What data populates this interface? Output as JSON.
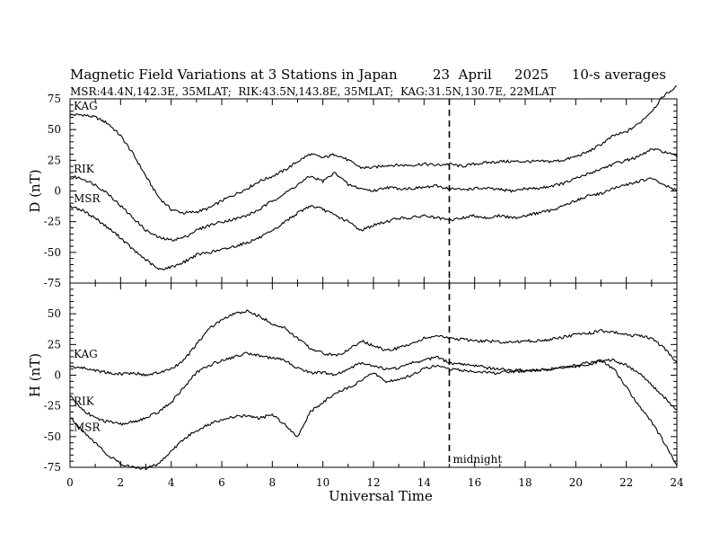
{
  "chart_data": {
    "type": "line",
    "title": "Magnetic Field Variations at 3 Stations in Japan",
    "date": "23  April",
    "year": "2025",
    "averaging": "10-s averages",
    "stations_info": "MSR:44.4N,142.3E, 35MLAT;  RIK:43.5N,143.8E, 35MLAT;  KAG:31.5N,130.7E, 22MLAT",
    "xlabel": "Universal Time",
    "xlim": [
      0,
      24
    ],
    "xticks": [
      0,
      2,
      4,
      6,
      8,
      10,
      12,
      14,
      16,
      18,
      20,
      22,
      24
    ],
    "midnight": {
      "x": 15,
      "label": "midnight"
    },
    "panels": [
      {
        "ylabel": "D (nT)",
        "ylim": [
          -75,
          75
        ],
        "yticks": [
          75,
          50,
          25,
          0,
          -25,
          -50,
          -75
        ],
        "series": [
          {
            "name": "KAG",
            "x": [
              0,
              0.5,
              1,
              1.5,
              2,
              2.5,
              3,
              3.5,
              4,
              4.5,
              5,
              5.5,
              6,
              6.5,
              7,
              7.5,
              8,
              8.5,
              9,
              9.5,
              10,
              10.5,
              11,
              11.5,
              12,
              12.5,
              13,
              13.5,
              14,
              14.5,
              15,
              15.5,
              16,
              16.5,
              17,
              17.5,
              18,
              18.5,
              19,
              19.5,
              20,
              20.5,
              21,
              21.5,
              22,
              22.5,
              23,
              23.5,
              24
            ],
            "y": [
              62,
              62,
              60,
              55,
              45,
              30,
              12,
              -5,
              -15,
              -18,
              -17,
              -14,
              -8,
              -3,
              2,
              8,
              12,
              17,
              24,
              30,
              27,
              30,
              25,
              19,
              19,
              21,
              21,
              21,
              22,
              21,
              22,
              20,
              22,
              23,
              24,
              24,
              24,
              24,
              24,
              25,
              28,
              32,
              38,
              45,
              48,
              55,
              65,
              78,
              85
            ]
          },
          {
            "name": "RIK",
            "x": [
              0,
              0.5,
              1,
              1.5,
              2,
              2.5,
              3,
              3.5,
              4,
              4.5,
              5,
              5.5,
              6,
              6.5,
              7,
              7.5,
              8,
              8.5,
              9,
              9.5,
              10,
              10.5,
              11,
              11.5,
              12,
              12.5,
              13,
              13.5,
              14,
              14.5,
              15,
              15.5,
              16,
              16.5,
              17,
              17.5,
              18,
              18.5,
              19,
              19.5,
              20,
              20.5,
              21,
              21.5,
              22,
              22.5,
              23,
              23.5,
              24
            ],
            "y": [
              12,
              10,
              5,
              -2,
              -12,
              -22,
              -32,
              -38,
              -40,
              -38,
              -32,
              -28,
              -25,
              -23,
              -20,
              -15,
              -8,
              -2,
              5,
              12,
              8,
              15,
              5,
              2,
              0,
              3,
              2,
              2,
              3,
              4,
              2,
              1,
              2,
              2,
              1,
              0,
              2,
              2,
              4,
              6,
              10,
              14,
              18,
              22,
              25,
              28,
              34,
              32,
              28
            ]
          },
          {
            "name": "MSR",
            "x": [
              0,
              0.5,
              1,
              1.5,
              2,
              2.5,
              3,
              3.5,
              4,
              4.5,
              5,
              5.5,
              6,
              6.5,
              7,
              7.5,
              8,
              8.5,
              9,
              9.5,
              10,
              10.5,
              11,
              11.5,
              12,
              12.5,
              13,
              13.5,
              14,
              14.5,
              15,
              15.5,
              16,
              16.5,
              17,
              17.5,
              18,
              18.5,
              19,
              19.5,
              20,
              20.5,
              21,
              21.5,
              22,
              22.5,
              23,
              23.5,
              24
            ],
            "y": [
              -12,
              -16,
              -22,
              -30,
              -38,
              -48,
              -56,
              -64,
              -62,
              -58,
              -52,
              -50,
              -48,
              -45,
              -42,
              -38,
              -33,
              -25,
              -18,
              -12,
              -15,
              -20,
              -25,
              -32,
              -28,
              -25,
              -22,
              -22,
              -20,
              -22,
              -24,
              -22,
              -20,
              -22,
              -20,
              -22,
              -20,
              -18,
              -16,
              -12,
              -8,
              -4,
              -2,
              2,
              5,
              8,
              10,
              5,
              0
            ]
          }
        ]
      },
      {
        "ylabel": "H (nT)",
        "ylim": [
          -75,
          75
        ],
        "yticks": [
          50,
          25,
          0,
          -25,
          -50,
          -75
        ],
        "series": [
          {
            "name": "KAG",
            "x": [
              0,
              0.5,
              1,
              1.5,
              2,
              2.5,
              3,
              3.5,
              4,
              4.5,
              5,
              5.5,
              6,
              6.5,
              7,
              7.5,
              8,
              8.5,
              9,
              9.5,
              10,
              10.5,
              11,
              11.5,
              12,
              12.5,
              13,
              13.5,
              14,
              14.5,
              15,
              15.5,
              16,
              16.5,
              17,
              17.5,
              18,
              18.5,
              19,
              19.5,
              20,
              20.5,
              21,
              21.5,
              22,
              22.5,
              23,
              23.5,
              24
            ],
            "y": [
              7,
              6,
              4,
              2,
              1,
              2,
              0,
              2,
              5,
              12,
              25,
              38,
              45,
              50,
              52,
              48,
              42,
              38,
              30,
              22,
              18,
              16,
              20,
              28,
              24,
              20,
              22,
              26,
              30,
              32,
              30,
              29,
              28,
              28,
              27,
              27,
              28,
              28,
              29,
              31,
              33,
              34,
              36,
              35,
              33,
              32,
              30,
              22,
              10
            ]
          },
          {
            "name": "RIK",
            "x": [
              0,
              0.5,
              1,
              1.5,
              2,
              2.5,
              3,
              3.5,
              4,
              4.5,
              5,
              5.5,
              6,
              6.5,
              7,
              7.5,
              8,
              8.5,
              9,
              9.5,
              10,
              10.5,
              11,
              11.5,
              12,
              12.5,
              13,
              13.5,
              14,
              14.5,
              15,
              15.5,
              16,
              16.5,
              17,
              17.5,
              18,
              18.5,
              19,
              19.5,
              20,
              20.5,
              21,
              21.5,
              22,
              22.5,
              23,
              23.5,
              24
            ],
            "y": [
              -17,
              -28,
              -35,
              -38,
              -40,
              -38,
              -35,
              -30,
              -22,
              -10,
              2,
              8,
              12,
              15,
              18,
              16,
              14,
              12,
              6,
              2,
              2,
              0,
              5,
              10,
              8,
              5,
              6,
              10,
              12,
              15,
              10,
              9,
              8,
              6,
              5,
              4,
              4,
              4,
              5,
              6,
              8,
              10,
              12,
              12,
              8,
              2,
              -8,
              -18,
              -28
            ]
          },
          {
            "name": "MSR",
            "x": [
              0,
              0.5,
              1,
              1.5,
              2,
              2.5,
              3,
              3.5,
              4,
              4.5,
              5,
              5.5,
              6,
              6.5,
              7,
              7.5,
              8,
              8.5,
              9,
              9.5,
              10,
              10.5,
              11,
              11.5,
              12,
              12.5,
              13,
              13.5,
              14,
              14.5,
              15,
              15.5,
              16,
              16.5,
              17,
              17.5,
              18,
              18.5,
              19,
              19.5,
              20,
              20.5,
              21,
              21.5,
              22,
              22.5,
              23,
              23.5,
              24
            ],
            "y": [
              -35,
              -45,
              -55,
              -65,
              -72,
              -75,
              -76,
              -72,
              -62,
              -52,
              -45,
              -40,
              -36,
              -34,
              -33,
              -35,
              -32,
              -40,
              -50,
              -30,
              -22,
              -15,
              -10,
              -5,
              2,
              -5,
              -4,
              0,
              5,
              8,
              5,
              4,
              3,
              2,
              2,
              3,
              3,
              4,
              5,
              6,
              7,
              8,
              12,
              5,
              -10,
              -25,
              -38,
              -55,
              -73
            ]
          }
        ]
      }
    ]
  }
}
